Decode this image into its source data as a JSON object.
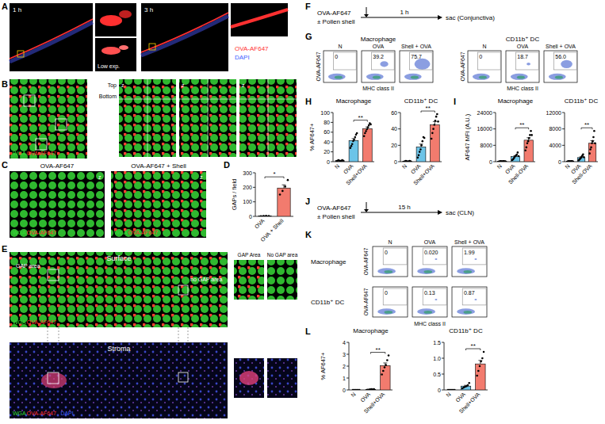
{
  "figure": {
    "panel_labels": [
      "A",
      "B",
      "C",
      "D",
      "E",
      "F",
      "G",
      "H",
      "I",
      "J",
      "K",
      "L"
    ],
    "A": {
      "time_labels": [
        "1 h",
        "3 h"
      ],
      "inset_label": "Low exp.",
      "legend": [
        {
          "text": "OVA-AF647",
          "color": "#ff3030"
        },
        {
          "text": "DAPI",
          "color": "#4060ff"
        }
      ]
    },
    "B": {
      "legend": [
        {
          "text": "WGA",
          "color": "#33dd33"
        },
        {
          "text": "OVA-AF647",
          "color": "#ff3030"
        }
      ],
      "z_label": "z",
      "top_label": "Top",
      "bottom_label": "Bottom"
    },
    "C": {
      "titles": [
        "OVA-AF647",
        "OVA-AF647 + Shell"
      ],
      "legend": [
        {
          "text": "WGA",
          "color": "#33dd33"
        },
        {
          "text": "OVA-AF647",
          "color": "#ff3030"
        }
      ],
      "z_label": "z"
    },
    "E": {
      "row_labels": [
        "Surface",
        "Stroma"
      ],
      "region_labels": [
        "GAP area",
        "no GAP area"
      ],
      "inset_titles": [
        "GAP Area",
        "No GAP area"
      ],
      "surface_legend": [
        {
          "text": "WGA",
          "color": "#33dd33"
        },
        {
          "text": "OVA-AF647",
          "color": "#ff3030"
        }
      ],
      "stroma_legend": [
        {
          "text": "WGA",
          "color": "#33dd33"
        },
        {
          "text": "OVA-AF647",
          "color": "#ff3030"
        },
        {
          "text": "DAPI",
          "color": "#4060ff"
        }
      ]
    },
    "F": {
      "treatment": [
        "OVA-AF647",
        "± Pollen shell"
      ],
      "time": "1 h",
      "endpoint": "sac (Conjunctiva)"
    },
    "G": {
      "cell_types": [
        "Macrophage",
        "CD11b⁺ DC"
      ],
      "conditions": [
        "N",
        "OVA",
        "Shell + OVA"
      ],
      "gate_labels": [
        [
          "0",
          "39.2",
          "75.7"
        ],
        [
          "0",
          "18.7",
          "56.0"
        ]
      ],
      "y_label": "OVA-AF647",
      "x_label": "MHC class II"
    },
    "J": {
      "treatment": [
        "OVA-AF647",
        "± Pollen shell"
      ],
      "time": "15 h",
      "endpoint": "sac (CLN)"
    },
    "K": {
      "cell_types": [
        "Macrophage",
        "CD11b⁺ DC"
      ],
      "conditions": [
        "N",
        "OVA",
        "Shell + OVA"
      ],
      "gate_labels": [
        [
          "0",
          "0.020",
          "1.99"
        ],
        [
          "0",
          "0.13",
          "0.87"
        ]
      ],
      "y_label": "OVA-AF647",
      "x_label": "MHC class II"
    }
  },
  "chart_data": [
    {
      "type": "bar",
      "y_label": "GAPs / field",
      "categories": [
        "OVA",
        "OVA + Shell"
      ],
      "values": [
        3,
        195
      ],
      "errors": [
        1,
        22
      ],
      "points": [
        [
          1,
          2,
          4,
          3
        ],
        [
          150,
          175,
          205,
          250
        ]
      ],
      "colors": [
        "#6cc4e8",
        "#f27b6e"
      ],
      "ylim": [
        0,
        300
      ],
      "yticks": [
        0,
        100,
        200,
        300
      ],
      "annotations": [
        {
          "text": "*",
          "from": "OVA",
          "to": "OVA + Shell"
        }
      ]
    },
    {
      "type": "bar",
      "title": "Macrophage",
      "y_label": "% AF647+",
      "categories": [
        "N",
        "OVA",
        "Shell+OVA"
      ],
      "values": [
        2,
        43,
        67
      ],
      "errors": [
        0.3,
        4,
        3.5
      ],
      "points": [
        [
          1,
          2,
          3,
          2,
          1,
          2,
          3,
          2
        ],
        [
          28,
          32,
          36,
          42,
          45,
          50,
          55,
          58
        ],
        [
          52,
          58,
          62,
          66,
          70,
          74,
          78,
          76
        ]
      ],
      "colors": [
        "#e8e8e8",
        "#6cc4e8",
        "#f27b6e"
      ],
      "ylim": [
        0,
        100
      ],
      "yticks": [
        0,
        20,
        40,
        60,
        80,
        100
      ],
      "annotations": [
        {
          "text": "**",
          "from": "OVA",
          "to": "Shell+OVA"
        }
      ]
    },
    {
      "type": "bar",
      "title": "CD11b⁺ DC",
      "categories": [
        "N",
        "OVA",
        "Shell+OVA"
      ],
      "values": [
        0.5,
        18,
        45
      ],
      "errors": [
        0.15,
        3.5,
        4
      ],
      "points": [
        [
          0,
          0.5,
          1,
          0.5,
          0,
          0.5,
          1,
          0.5
        ],
        [
          5,
          8,
          12,
          15,
          20,
          25,
          30,
          29
        ],
        [
          28,
          35,
          40,
          45,
          50,
          55,
          58,
          49
        ]
      ],
      "colors": [
        "#e8e8e8",
        "#6cc4e8",
        "#f27b6e"
      ],
      "ylim": [
        0,
        60
      ],
      "yticks": [
        0,
        20,
        40,
        60
      ],
      "annotations": [
        {
          "text": "**",
          "from": "OVA",
          "to": "Shell+OVA"
        }
      ]
    },
    {
      "type": "bar",
      "title": "Macrophage",
      "y_label": "AF647 MFI (A.U.)",
      "categories": [
        "N",
        "OVA",
        "Shell-OVA"
      ],
      "values": [
        200,
        2500,
        10500
      ],
      "errors": [
        25,
        450,
        1200
      ],
      "points": [
        [
          100,
          200,
          300,
          200,
          150,
          250,
          200,
          200
        ],
        [
          800,
          1200,
          1800,
          2500,
          3000,
          3500,
          4500,
          2700
        ],
        [
          5500,
          7000,
          9000,
          10000,
          11500,
          13000,
          15000,
          13000
        ]
      ],
      "colors": [
        "#e8e8e8",
        "#6cc4e8",
        "#f27b6e"
      ],
      "ylim": [
        0,
        24000
      ],
      "yticks": [
        0,
        8000,
        16000,
        24000
      ],
      "annotations": [
        {
          "text": "**",
          "from": "OVA",
          "to": "Shell-OVA"
        }
      ]
    },
    {
      "type": "bar",
      "title": "CD11b⁺ DC",
      "categories": [
        "N",
        "OVA",
        "Shell-OVA"
      ],
      "values": [
        100,
        1000,
        4500
      ],
      "errors": [
        12,
        180,
        650
      ],
      "points": [
        [
          50,
          100,
          150,
          100,
          80,
          120,
          100,
          100
        ],
        [
          300,
          500,
          700,
          900,
          1200,
          1500,
          1800,
          1100
        ],
        [
          2000,
          3000,
          3500,
          4500,
          5000,
          6000,
          7500,
          4500
        ]
      ],
      "colors": [
        "#e8e8e8",
        "#6cc4e8",
        "#f27b6e"
      ],
      "ylim": [
        0,
        12000
      ],
      "yticks": [
        0,
        4000,
        8000,
        12000
      ],
      "annotations": [
        {
          "text": "**",
          "from": "OVA",
          "to": "Shell-OVA"
        }
      ]
    },
    {
      "type": "bar",
      "title": "Macrophage",
      "y_label": "% AF647+",
      "categories": [
        "N",
        "OVA",
        "Shell+OVA"
      ],
      "values": [
        0,
        0.04,
        2.05
      ],
      "errors": [
        0,
        0.01,
        0.22
      ],
      "points": [
        [
          0,
          0,
          0,
          0,
          0,
          0
        ],
        [
          0.01,
          0.02,
          0.05,
          0.06,
          0.04,
          0.06
        ],
        [
          1.3,
          1.6,
          1.9,
          2.1,
          2.5,
          2.9
        ]
      ],
      "colors": [
        "#e8e8e8",
        "#6cc4e8",
        "#f27b6e"
      ],
      "ylim": [
        0,
        4
      ],
      "yticks": [
        0,
        1,
        2,
        3,
        4
      ],
      "annotations": [
        {
          "text": "**",
          "from": "OVA",
          "to": "Shell+OVA"
        }
      ]
    },
    {
      "type": "bar",
      "title": "CD11b⁺ DC",
      "categories": [
        "N",
        "OVA",
        "Shell+OVA"
      ],
      "values": [
        0,
        0.12,
        0.82
      ],
      "errors": [
        0,
        0.025,
        0.11
      ],
      "points": [
        [
          0,
          0,
          0,
          0,
          0,
          0
        ],
        [
          0.05,
          0.08,
          0.1,
          0.12,
          0.15,
          0.22
        ],
        [
          0.45,
          0.6,
          0.75,
          0.9,
          1.0,
          1.2
        ]
      ],
      "colors": [
        "#e8e8e8",
        "#6cc4e8",
        "#f27b6e"
      ],
      "ylim": [
        0,
        1.5
      ],
      "yticks": [
        0,
        0.5,
        {
          "value": 1,
          "label": "1.0"
        },
        1.5
      ],
      "annotations": [
        {
          "text": "**",
          "from": "OVA",
          "to": "Shell+OVA"
        }
      ]
    }
  ]
}
